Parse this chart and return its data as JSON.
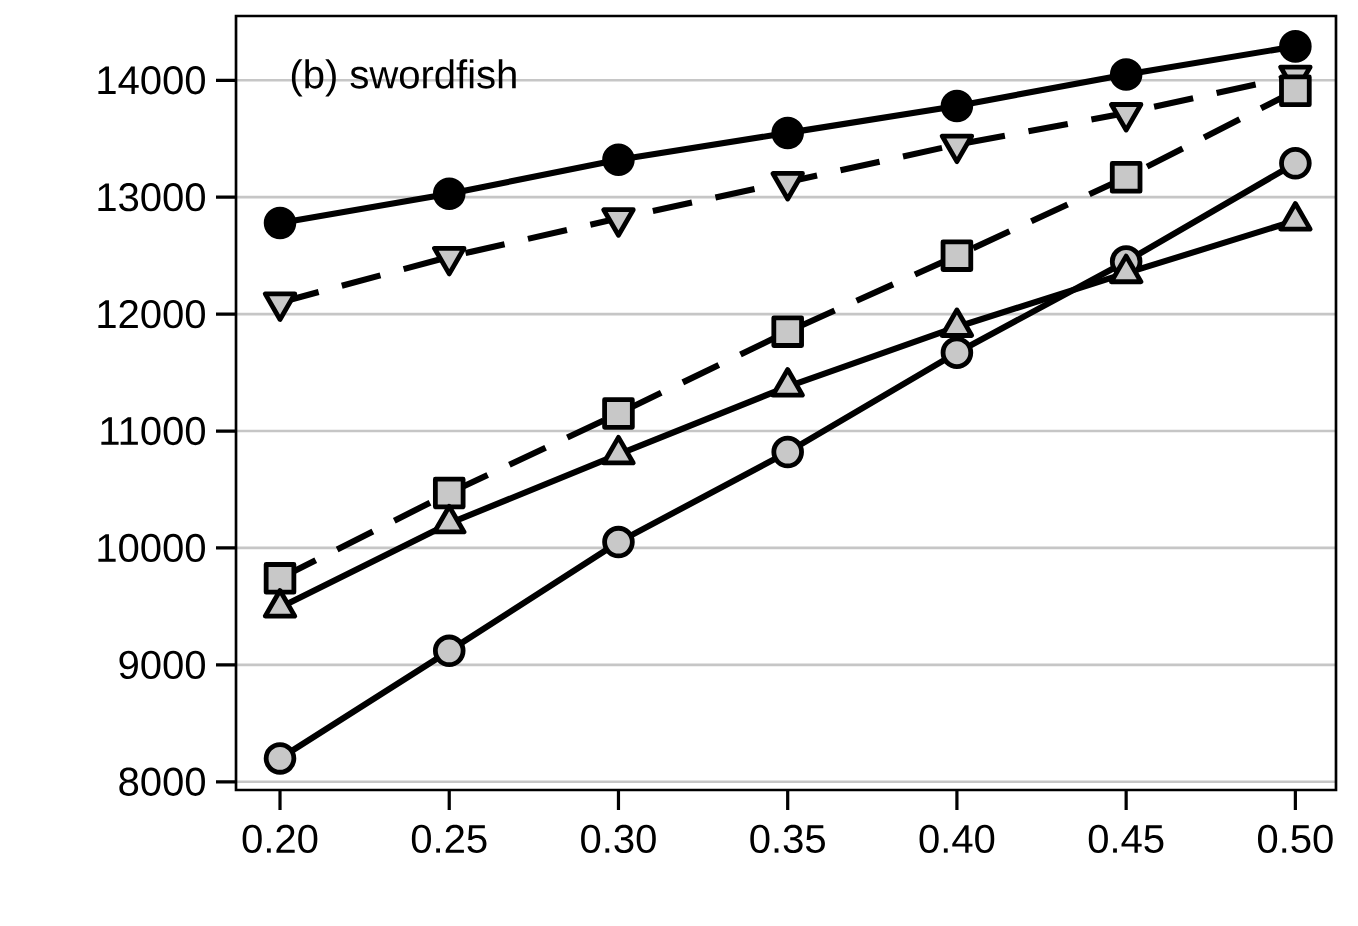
{
  "chart_data": {
    "type": "line",
    "title": "(b) swordfish",
    "x": [
      0.2,
      0.25,
      0.3,
      0.35,
      0.4,
      0.45,
      0.5
    ],
    "xlim": [
      0.187,
      0.512
    ],
    "ylim": [
      7930,
      14550
    ],
    "xticks": [
      {
        "value": 0.2,
        "label": "0.20"
      },
      {
        "value": 0.25,
        "label": "0.25"
      },
      {
        "value": 0.3,
        "label": "0.30"
      },
      {
        "value": 0.35,
        "label": "0.35"
      },
      {
        "value": 0.4,
        "label": "0.40"
      },
      {
        "value": 0.45,
        "label": "0.45"
      },
      {
        "value": 0.5,
        "label": "0.50"
      }
    ],
    "yticks": [
      8000,
      9000,
      10000,
      11000,
      12000,
      13000,
      14000
    ],
    "grid": "y",
    "series": [
      {
        "color": "#000000",
        "marker": "circle",
        "line_style": "solid",
        "values": [
          12780,
          13030,
          13320,
          13550,
          13780,
          14050,
          14290
        ]
      },
      {
        "color": "#c8c8c8",
        "marker": "triangle-down",
        "line_style": "dashed",
        "values": [
          12100,
          12490,
          12820,
          13130,
          13450,
          13720,
          14040
        ]
      },
      {
        "color": "#c8c8c8",
        "marker": "square",
        "line_style": "dashed",
        "values": [
          9740,
          10470,
          11150,
          11850,
          12500,
          13170,
          13910
        ]
      },
      {
        "color": "#c8c8c8",
        "marker": "circle",
        "line_style": "solid",
        "values": [
          8200,
          9120,
          10050,
          10820,
          11670,
          12450,
          13290
        ]
      },
      {
        "color": "#c8c8c8",
        "marker": "triangle",
        "line_style": "solid",
        "values": [
          9490,
          10210,
          10800,
          11380,
          11890,
          12350,
          12800
        ]
      }
    ]
  }
}
